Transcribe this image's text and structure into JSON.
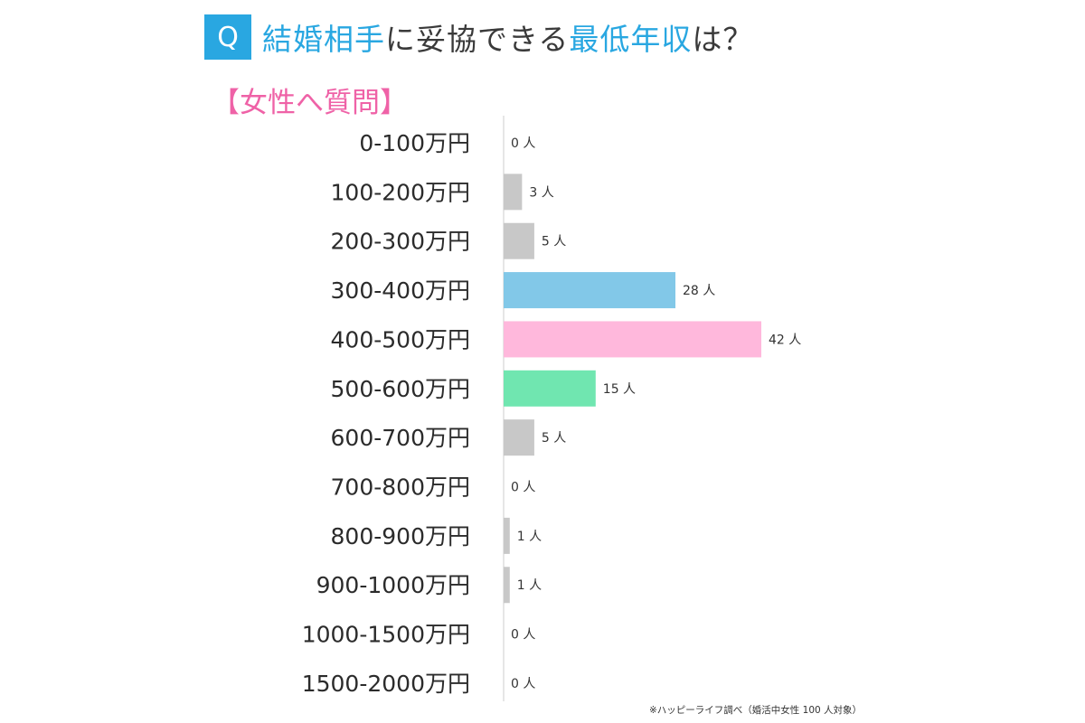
{
  "header": {
    "q_badge": "Q",
    "title_parts": [
      {
        "text": "結婚相手",
        "color": "#29a7e1"
      },
      {
        "text": "に妥協できる",
        "color": "#3a3a3a"
      },
      {
        "text": "最低年収",
        "color": "#29a7e1"
      },
      {
        "text": "は？",
        "color": "#3a3a3a"
      }
    ],
    "subtitle": "【女性へ質問】"
  },
  "chart_data": {
    "type": "bar",
    "orientation": "horizontal",
    "title": "結婚相手に妥協できる最低年収は？",
    "subtitle": "【女性へ質問】",
    "categories": [
      "0-100万円",
      "100-200万円",
      "200-300万円",
      "300-400万円",
      "400-500万円",
      "500-600万円",
      "600-700万円",
      "700-800万円",
      "800-900万円",
      "900-1000万円",
      "1000-1500万円",
      "1500-2000万円"
    ],
    "values": [
      0,
      3,
      5,
      28,
      42,
      15,
      5,
      0,
      1,
      1,
      0,
      0
    ],
    "value_labels": [
      "0 人",
      "3 人",
      "5 人",
      "28 人",
      "42 人",
      "15 人",
      "5 人",
      "0 人",
      "1 人",
      "1 人",
      "0 人",
      "0 人"
    ],
    "bar_colors": [
      "#c8c8c8",
      "#c8c8c8",
      "#c8c8c8",
      "#82c8e8",
      "#ffb8dc",
      "#70e6b0",
      "#c8c8c8",
      "#c8c8c8",
      "#c8c8c8",
      "#c8c8c8",
      "#c8c8c8",
      "#c8c8c8"
    ],
    "axis_color": "#e6e6e6",
    "xlim": [
      0,
      42
    ],
    "grid": false
  },
  "footnote": "※ハッピーライフ調べ（婚活中女性 100 人対象）"
}
